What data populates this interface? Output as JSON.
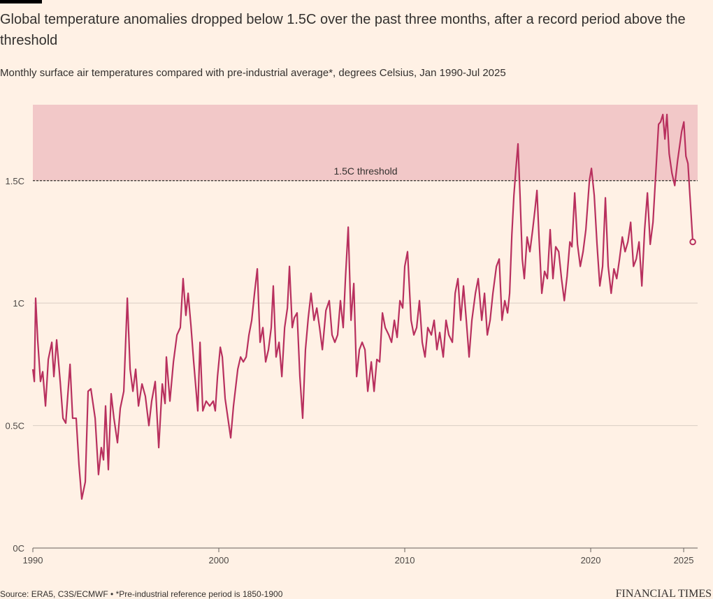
{
  "chart_data": {
    "type": "line",
    "title": "Global temperature anomalies dropped below 1.5C over the past three months, after a record period above the threshold",
    "subtitle": "Monthly surface air temperatures compared with pre-industrial average*, degrees Celsius, Jan 1990-Jul 2025",
    "source": "Source: ERA5, C3S/ECMWF • *Pre-industrial reference period is 1850-1900",
    "brand": "FINANCIAL TIMES",
    "threshold": 1.5,
    "threshold_label": "1.5C threshold",
    "threshold_color": "#f2c8c8",
    "color": "#b8305e",
    "grid": true,
    "xlim": [
      1990,
      2025.75
    ],
    "xticks": [
      1990,
      2000,
      2010,
      2020,
      2025
    ],
    "ylim": [
      0,
      1.81
    ],
    "yticks": [
      {
        "value": 0,
        "label": "0C"
      },
      {
        "value": 0.5,
        "label": "0.5C"
      },
      {
        "value": 1,
        "label": "1C"
      },
      {
        "value": 1.5,
        "label": "1.5C"
      }
    ],
    "x": [
      1990.0,
      1990.08,
      1990.15,
      1990.26,
      1990.41,
      1990.53,
      1990.68,
      1990.83,
      1991.02,
      1991.13,
      1991.28,
      1991.47,
      1991.62,
      1991.77,
      1992.0,
      1992.14,
      1992.33,
      1992.48,
      1992.63,
      1992.82,
      1992.97,
      1993.12,
      1993.35,
      1993.53,
      1993.68,
      1993.8,
      1993.91,
      1994.06,
      1994.21,
      1994.36,
      1994.55,
      1994.7,
      1994.89,
      1995.08,
      1995.23,
      1995.38,
      1995.53,
      1995.68,
      1995.87,
      1996.05,
      1996.24,
      1996.39,
      1996.58,
      1996.77,
      1996.96,
      1997.11,
      1997.18,
      1997.37,
      1997.56,
      1997.75,
      1997.93,
      1998.08,
      1998.23,
      1998.35,
      1998.5,
      1998.65,
      1998.87,
      1998.99,
      1999.14,
      1999.32,
      1999.51,
      1999.7,
      1999.81,
      1999.93,
      2000.08,
      2000.19,
      2000.34,
      2000.49,
      2000.64,
      2000.79,
      2001.02,
      2001.17,
      2001.32,
      2001.47,
      2001.62,
      2001.77,
      2001.92,
      2002.07,
      2002.22,
      2002.37,
      2002.52,
      2002.67,
      2002.82,
      2002.93,
      2003.08,
      2003.24,
      2003.39,
      2003.54,
      2003.69,
      2003.8,
      2003.95,
      2004.06,
      2004.21,
      2004.36,
      2004.51,
      2004.66,
      2004.81,
      2004.96,
      2005.12,
      2005.27,
      2005.42,
      2005.57,
      2005.76,
      2005.94,
      2006.09,
      2006.24,
      2006.39,
      2006.54,
      2006.69,
      2006.81,
      2006.96,
      2007.11,
      2007.26,
      2007.41,
      2007.56,
      2007.71,
      2007.86,
      2008.01,
      2008.2,
      2008.35,
      2008.5,
      2008.65,
      2008.8,
      2008.95,
      2009.14,
      2009.29,
      2009.44,
      2009.59,
      2009.74,
      2009.89,
      2010.0,
      2010.15,
      2010.34,
      2010.49,
      2010.64,
      2010.79,
      2010.94,
      2011.09,
      2011.24,
      2011.43,
      2011.58,
      2011.73,
      2011.88,
      2012.07,
      2012.22,
      2012.37,
      2012.56,
      2012.71,
      2012.86,
      2013.01,
      2013.16,
      2013.31,
      2013.46,
      2013.61,
      2013.8,
      2013.95,
      2014.14,
      2014.29,
      2014.44,
      2014.59,
      2014.74,
      2014.93,
      2015.08,
      2015.23,
      2015.38,
      2015.53,
      2015.64,
      2015.76,
      2015.87,
      2015.98,
      2016.09,
      2016.2,
      2016.32,
      2016.43,
      2016.58,
      2016.73,
      2016.88,
      2017.0,
      2017.11,
      2017.22,
      2017.37,
      2017.52,
      2017.67,
      2017.82,
      2017.97,
      2018.12,
      2018.28,
      2018.43,
      2018.58,
      2018.73,
      2018.88,
      2018.99,
      2019.14,
      2019.29,
      2019.44,
      2019.59,
      2019.74,
      2019.93,
      2020.04,
      2020.19,
      2020.34,
      2020.49,
      2020.64,
      2020.79,
      2020.94,
      2021.1,
      2021.25,
      2021.4,
      2021.55,
      2021.7,
      2021.85,
      2022.0,
      2022.15,
      2022.3,
      2022.45,
      2022.6,
      2022.75,
      2022.9,
      2023.05,
      2023.2,
      2023.35,
      2023.5,
      2023.65,
      2023.76,
      2023.88,
      2023.99,
      2024.1,
      2024.22,
      2024.37,
      2024.52,
      2024.67,
      2024.78,
      2024.89,
      2025.01,
      2025.12,
      2025.23,
      2025.49
    ],
    "values": [
      0.73,
      0.68,
      1.02,
      0.85,
      0.68,
      0.72,
      0.58,
      0.77,
      0.84,
      0.7,
      0.85,
      0.68,
      0.53,
      0.51,
      0.75,
      0.53,
      0.53,
      0.34,
      0.2,
      0.27,
      0.64,
      0.65,
      0.53,
      0.3,
      0.41,
      0.36,
      0.58,
      0.32,
      0.63,
      0.53,
      0.43,
      0.57,
      0.64,
      1.02,
      0.73,
      0.64,
      0.73,
      0.58,
      0.67,
      0.62,
      0.5,
      0.6,
      0.68,
      0.41,
      0.67,
      0.59,
      0.78,
      0.6,
      0.76,
      0.87,
      0.9,
      1.1,
      0.95,
      1.04,
      0.91,
      0.76,
      0.56,
      0.84,
      0.56,
      0.6,
      0.58,
      0.6,
      0.56,
      0.7,
      0.82,
      0.78,
      0.61,
      0.53,
      0.45,
      0.58,
      0.73,
      0.78,
      0.76,
      0.78,
      0.87,
      0.93,
      1.04,
      1.14,
      0.84,
      0.9,
      0.76,
      0.81,
      0.9,
      1.07,
      0.78,
      0.84,
      0.7,
      0.9,
      0.98,
      1.15,
      0.9,
      0.94,
      0.96,
      0.7,
      0.53,
      0.81,
      0.94,
      1.04,
      0.93,
      0.98,
      0.9,
      0.81,
      0.97,
      1.01,
      0.87,
      0.84,
      0.87,
      1.01,
      0.9,
      1.1,
      1.31,
      0.93,
      1.08,
      0.7,
      0.81,
      0.84,
      0.81,
      0.64,
      0.76,
      0.64,
      0.77,
      0.76,
      0.96,
      0.9,
      0.87,
      0.84,
      0.93,
      0.86,
      1.01,
      0.98,
      1.15,
      1.21,
      0.93,
      0.87,
      0.9,
      1.01,
      0.84,
      0.78,
      0.9,
      0.87,
      0.93,
      0.81,
      0.88,
      0.78,
      0.93,
      0.87,
      0.84,
      1.04,
      1.1,
      0.93,
      1.07,
      0.93,
      0.78,
      0.93,
      1.04,
      1.1,
      0.93,
      1.04,
      0.87,
      0.93,
      1.04,
      1.15,
      1.18,
      0.93,
      1.01,
      0.96,
      1.04,
      1.28,
      1.44,
      1.55,
      1.65,
      1.44,
      1.18,
      1.1,
      1.27,
      1.21,
      1.3,
      1.38,
      1.46,
      1.27,
      1.04,
      1.13,
      1.1,
      1.3,
      1.1,
      1.23,
      1.21,
      1.1,
      1.01,
      1.11,
      1.25,
      1.23,
      1.45,
      1.24,
      1.15,
      1.21,
      1.3,
      1.5,
      1.55,
      1.44,
      1.24,
      1.07,
      1.15,
      1.43,
      1.15,
      1.04,
      1.14,
      1.1,
      1.18,
      1.27,
      1.21,
      1.25,
      1.33,
      1.15,
      1.18,
      1.25,
      1.07,
      1.3,
      1.45,
      1.24,
      1.33,
      1.53,
      1.73,
      1.74,
      1.77,
      1.67,
      1.77,
      1.61,
      1.53,
      1.48,
      1.58,
      1.64,
      1.7,
      1.74,
      1.6,
      1.57,
      1.25
    ]
  }
}
